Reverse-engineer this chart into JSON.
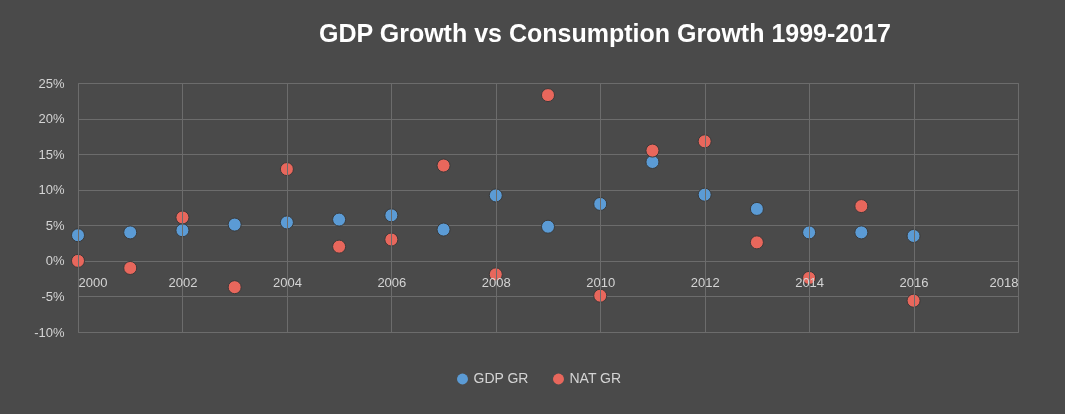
{
  "chart_data": {
    "type": "scatter",
    "title": "GDP Growth vs Consumption Growth 1999-2017",
    "x": [
      2000,
      2001,
      2002,
      2003,
      2004,
      2005,
      2006,
      2007,
      2008,
      2009,
      2010,
      2011,
      2012,
      2013,
      2014,
      2015,
      2016
    ],
    "series": [
      {
        "name": "GDP GR",
        "color": "#5b9bd5",
        "values": [
          3.6,
          4.0,
          4.3,
          5.1,
          5.4,
          5.8,
          6.4,
          4.4,
          9.2,
          4.8,
          8.0,
          13.9,
          9.3,
          7.3,
          4.0,
          4.0,
          3.5
        ]
      },
      {
        "name": "NAT GR",
        "color": "#e8675c",
        "values": [
          0.0,
          -1.0,
          6.1,
          -3.7,
          12.9,
          2.0,
          3.0,
          13.4,
          -1.9,
          23.3,
          -4.9,
          15.5,
          16.8,
          2.6,
          -2.4,
          7.7,
          -5.6
        ]
      }
    ],
    "xlim": [
      2000,
      2018
    ],
    "xticks": [
      2000,
      2002,
      2004,
      2006,
      2008,
      2010,
      2012,
      2014,
      2016,
      2018
    ],
    "ylim": [
      -10,
      25
    ],
    "yticks": [
      {
        "value": -10,
        "label": "-10%"
      },
      {
        "value": -5,
        "label": "-5%"
      },
      {
        "value": 0,
        "label": "0%"
      },
      {
        "value": 5,
        "label": "5%"
      },
      {
        "value": 10,
        "label": "10%"
      },
      {
        "value": 15,
        "label": "15%"
      },
      {
        "value": 20,
        "label": "20%"
      },
      {
        "value": 25,
        "label": "25%"
      }
    ],
    "grid": true,
    "legend": "bottom",
    "marker": "circle"
  }
}
